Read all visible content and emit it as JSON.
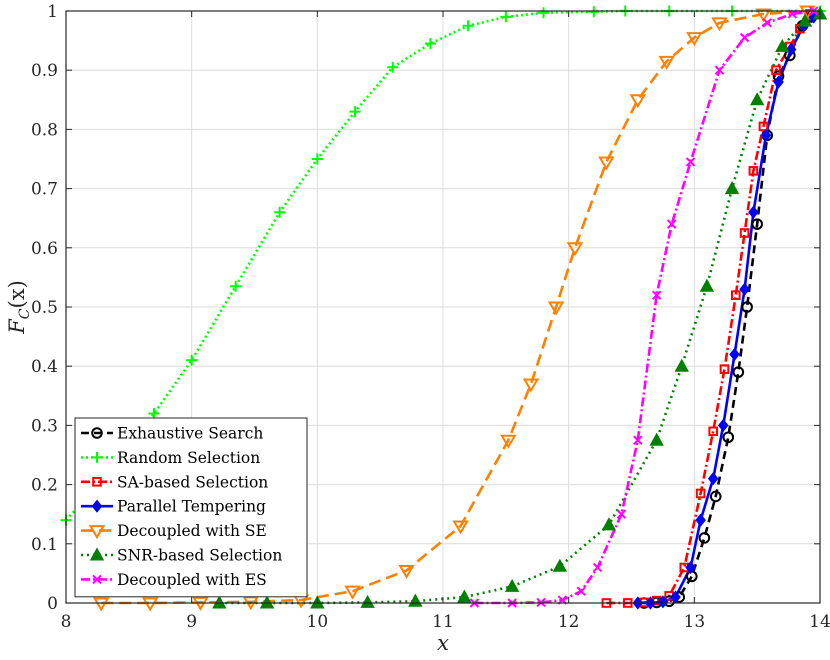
{
  "chart_data": {
    "type": "line",
    "title": "",
    "xlabel": "x",
    "ylabel": "F_C(x)",
    "xlim": [
      8,
      14
    ],
    "ylim": [
      0,
      1
    ],
    "xticks": [
      "8",
      "9",
      "10",
      "11",
      "12",
      "13",
      "14"
    ],
    "yticks": [
      "0",
      "0.1",
      "0.2",
      "0.3",
      "0.4",
      "0.5",
      "0.6",
      "0.7",
      "0.8",
      "0.9",
      "1"
    ],
    "grid": true,
    "legend_position": "bottom-left",
    "series": [
      {
        "name": "Exhaustive Search",
        "color": "#000000",
        "dash": "8,5",
        "marker": "circle",
        "marker_fill": "none",
        "x": [
          12.6,
          12.7,
          12.8,
          12.88,
          12.98,
          13.08,
          13.17,
          13.27,
          13.35,
          13.42,
          13.5,
          13.58,
          13.67,
          13.76,
          13.86,
          13.93
        ],
        "y": [
          0,
          0.001,
          0.003,
          0.01,
          0.045,
          0.11,
          0.18,
          0.28,
          0.39,
          0.5,
          0.64,
          0.79,
          0.89,
          0.925,
          0.975,
          0.99
        ]
      },
      {
        "name": "Random Selection",
        "color": "#00ff00",
        "dash": "2,3",
        "marker": "plus",
        "marker_fill": "none",
        "x": [
          8.0,
          8.3,
          8.7,
          9.0,
          9.35,
          9.7,
          10.0,
          10.3,
          10.6,
          10.9,
          11.2,
          11.5,
          11.8,
          12.2,
          12.45,
          12.8,
          13.3,
          14.0
        ],
        "y": [
          0.14,
          0.21,
          0.32,
          0.41,
          0.535,
          0.66,
          0.75,
          0.83,
          0.905,
          0.945,
          0.975,
          0.99,
          0.997,
          0.999,
          1.0,
          1.0,
          1.0,
          1.0
        ]
      },
      {
        "name": "SA-based Selection",
        "color": "#ff0000",
        "dash": "9,3,2,3",
        "marker": "square",
        "marker_fill": "none",
        "x": [
          12.3,
          12.47,
          12.6,
          12.7,
          12.8,
          12.92,
          13.05,
          13.15,
          13.24,
          13.33,
          13.4,
          13.47,
          13.55,
          13.65,
          13.76,
          13.84,
          13.92
        ],
        "y": [
          0,
          0,
          0.001,
          0.004,
          0.012,
          0.06,
          0.185,
          0.29,
          0.395,
          0.52,
          0.625,
          0.73,
          0.805,
          0.9,
          0.94,
          0.97,
          0.995
        ]
      },
      {
        "name": "Parallel Tempering",
        "color": "#0000ff",
        "dash": "",
        "marker": "diamond",
        "marker_fill": "#0000ff",
        "x": [
          12.55,
          12.65,
          12.75,
          12.85,
          12.97,
          13.05,
          13.15,
          13.23,
          13.32,
          13.4,
          13.47,
          13.57,
          13.67,
          13.77,
          13.87,
          13.95
        ],
        "y": [
          0,
          0,
          0.002,
          0.01,
          0.06,
          0.14,
          0.21,
          0.3,
          0.42,
          0.53,
          0.66,
          0.79,
          0.88,
          0.935,
          0.975,
          0.99
        ]
      },
      {
        "name": "Decoupled with SE",
        "color": "#ff8000",
        "dash": "12,6",
        "marker": "triangle-down",
        "marker_fill": "none",
        "x": [
          8.28,
          8.67,
          9.07,
          9.47,
          9.87,
          10.28,
          10.71,
          11.14,
          11.52,
          11.7,
          11.9,
          12.05,
          12.3,
          12.55,
          12.78,
          13.0,
          13.2,
          13.55,
          13.9
        ],
        "y": [
          0,
          0,
          0.001,
          0.002,
          0.005,
          0.02,
          0.055,
          0.13,
          0.275,
          0.37,
          0.5,
          0.6,
          0.745,
          0.85,
          0.915,
          0.955,
          0.98,
          0.995,
          1.0
        ]
      },
      {
        "name": "SNR-based Selection",
        "color": "#008000",
        "dash": "2,4",
        "marker": "triangle-up",
        "marker_fill": "#008000",
        "x": [
          9.22,
          9.6,
          10.0,
          10.4,
          10.78,
          11.17,
          11.55,
          11.93,
          12.32,
          12.7,
          12.9,
          13.1,
          13.3,
          13.5,
          13.7,
          13.88,
          14.0
        ],
        "y": [
          0,
          0,
          0,
          0.001,
          0.003,
          0.01,
          0.028,
          0.062,
          0.132,
          0.275,
          0.4,
          0.535,
          0.7,
          0.85,
          0.94,
          0.983,
          0.995
        ]
      },
      {
        "name": "Decoupled with ES",
        "color": "#ff00ff",
        "dash": "9,3,2,3",
        "marker": "x",
        "marker_fill": "none",
        "x": [
          11.25,
          11.55,
          11.78,
          11.95,
          12.1,
          12.23,
          12.42,
          12.55,
          12.7,
          12.82,
          12.97,
          13.2,
          13.4,
          13.58,
          13.78,
          13.95
        ],
        "y": [
          0,
          0,
          0.001,
          0.005,
          0.02,
          0.06,
          0.15,
          0.275,
          0.52,
          0.64,
          0.745,
          0.9,
          0.955,
          0.98,
          0.995,
          1.0
        ]
      }
    ]
  }
}
